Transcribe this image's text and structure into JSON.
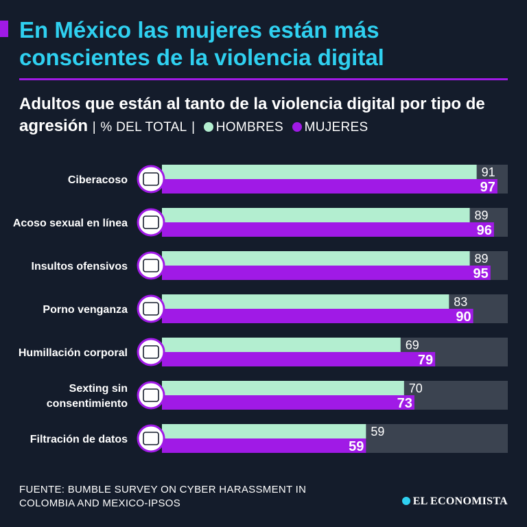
{
  "title": "En México las mujeres están más conscientes de la violencia digital",
  "subtitle": {
    "main": "Adultos que están al tanto de la violencia digital por tipo de agresión",
    "separator": "|",
    "unit": "% DEL TOTAL"
  },
  "source": "FUENTE: BUMBLE SURVEY ON CYBER HARASSMENT IN COLOMBIA AND MEXICO-IPSOS",
  "brand": "EL ECONOMISTA",
  "colors": {
    "background": "#141c2b",
    "title": "#2fd0f0",
    "accent": "#a01ae6",
    "hombres": "#b3eed0",
    "mujeres": "#a01ae6",
    "track": "#3b4350"
  },
  "icons": [
    "phone-harassment-icon",
    "computer-documents-icon",
    "hate-speech-icon",
    "woman-phone-icon",
    "body-shaming-icon",
    "sexting-phone-icon",
    "data-leak-icon"
  ],
  "chart_data": {
    "type": "bar",
    "orientation": "horizontal",
    "categories": [
      [
        "Ciberacoso"
      ],
      [
        "Acoso sexual en línea"
      ],
      [
        "Insultos ofensivos"
      ],
      [
        "Porno venganza"
      ],
      [
        "Humillación corporal"
      ],
      [
        "Sexting sin",
        "consentimiento"
      ],
      [
        "Filtración de datos"
      ]
    ],
    "series": [
      {
        "name": "HOMBRES",
        "values": [
          91,
          89,
          89,
          83,
          69,
          70,
          59
        ]
      },
      {
        "name": "MUJERES",
        "values": [
          97,
          96,
          95,
          90,
          79,
          73,
          59
        ]
      }
    ],
    "xlim": [
      0,
      100
    ],
    "unit": "% DEL TOTAL"
  }
}
